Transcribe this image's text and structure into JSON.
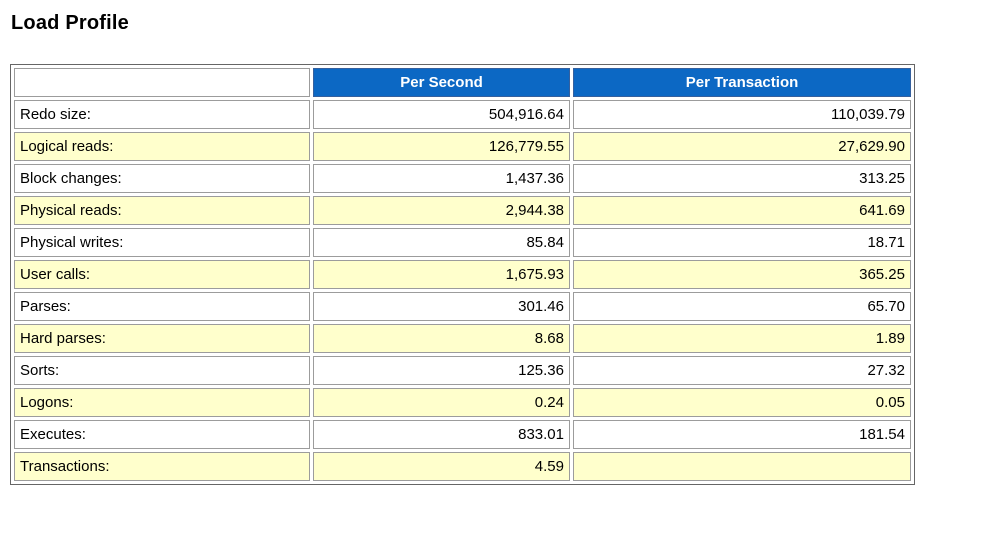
{
  "page": {
    "title": "Load Profile"
  },
  "colors": {
    "header_bg": "#0c68c4",
    "header_text": "#ffffff",
    "alt_row_bg": "#ffffcc",
    "cell_border": "#9c9c9c",
    "outer_border": "#666666"
  },
  "table": {
    "columns": [
      "",
      "Per Second",
      "Per Transaction"
    ],
    "rows": [
      {
        "label": "Redo size:",
        "per_second": "504,916.64",
        "per_transaction": "110,039.79"
      },
      {
        "label": "Logical reads:",
        "per_second": "126,779.55",
        "per_transaction": "27,629.90"
      },
      {
        "label": "Block changes:",
        "per_second": "1,437.36",
        "per_transaction": "313.25"
      },
      {
        "label": "Physical reads:",
        "per_second": "2,944.38",
        "per_transaction": "641.69"
      },
      {
        "label": "Physical writes:",
        "per_second": "85.84",
        "per_transaction": "18.71"
      },
      {
        "label": "User calls:",
        "per_second": "1,675.93",
        "per_transaction": "365.25"
      },
      {
        "label": "Parses:",
        "per_second": "301.46",
        "per_transaction": "65.70"
      },
      {
        "label": "Hard parses:",
        "per_second": "8.68",
        "per_transaction": "1.89"
      },
      {
        "label": "Sorts:",
        "per_second": "125.36",
        "per_transaction": "27.32"
      },
      {
        "label": "Logons:",
        "per_second": "0.24",
        "per_transaction": "0.05"
      },
      {
        "label": "Executes:",
        "per_second": "833.01",
        "per_transaction": "181.54"
      },
      {
        "label": "Transactions:",
        "per_second": "4.59",
        "per_transaction": ""
      }
    ]
  }
}
